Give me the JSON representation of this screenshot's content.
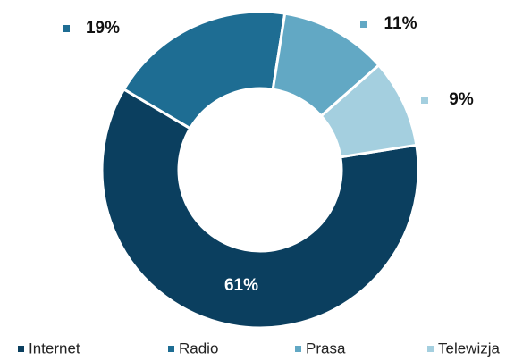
{
  "chart_data": {
    "type": "donut",
    "categories": [
      "Internet",
      "Radio",
      "Prasa",
      "Telewizja"
    ],
    "values": [
      61,
      19,
      11,
      9
    ],
    "value_labels": [
      "61%",
      "19%",
      "11%",
      "9%"
    ],
    "colors": [
      "#0b3f5f",
      "#1e6d93",
      "#62a8c4",
      "#a4cfdf"
    ],
    "legend": "bottom"
  }
}
